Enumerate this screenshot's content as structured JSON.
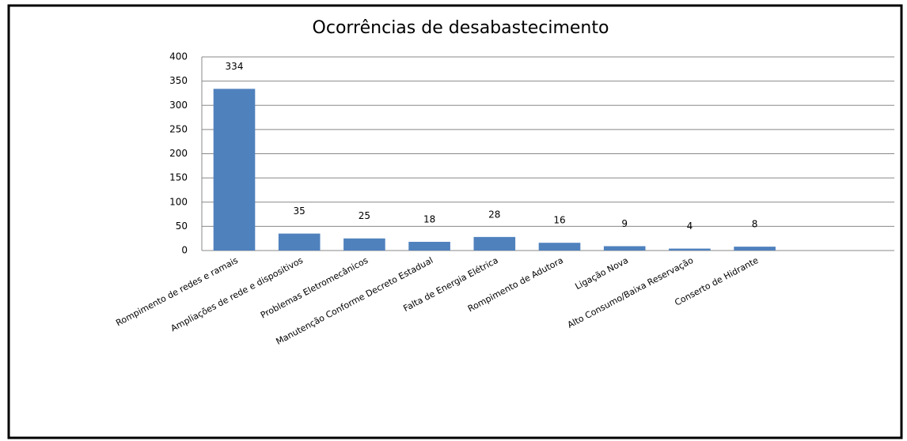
{
  "chart_data": {
    "type": "bar",
    "title": "Ocorrências de desabastecimento",
    "categories": [
      "Rompimento de redes e ramais",
      "Ampliações de rede e dispositivos",
      "Problemas Eletromecânicos",
      "Manutenção Conforme Decreto Estadual",
      "Falta de Energia Elétrica",
      "Rompimento de Adutora",
      "Ligação Nova",
      "Alto Consumo/Baixa Reservação",
      "Conserto de Hidrante"
    ],
    "values": [
      334,
      35,
      25,
      18,
      28,
      16,
      9,
      4,
      8
    ],
    "color": "#4f81bd",
    "ylim": [
      0,
      400
    ],
    "yticks": [
      0,
      50,
      100,
      150,
      200,
      250,
      300,
      350,
      400
    ],
    "grid": true
  }
}
